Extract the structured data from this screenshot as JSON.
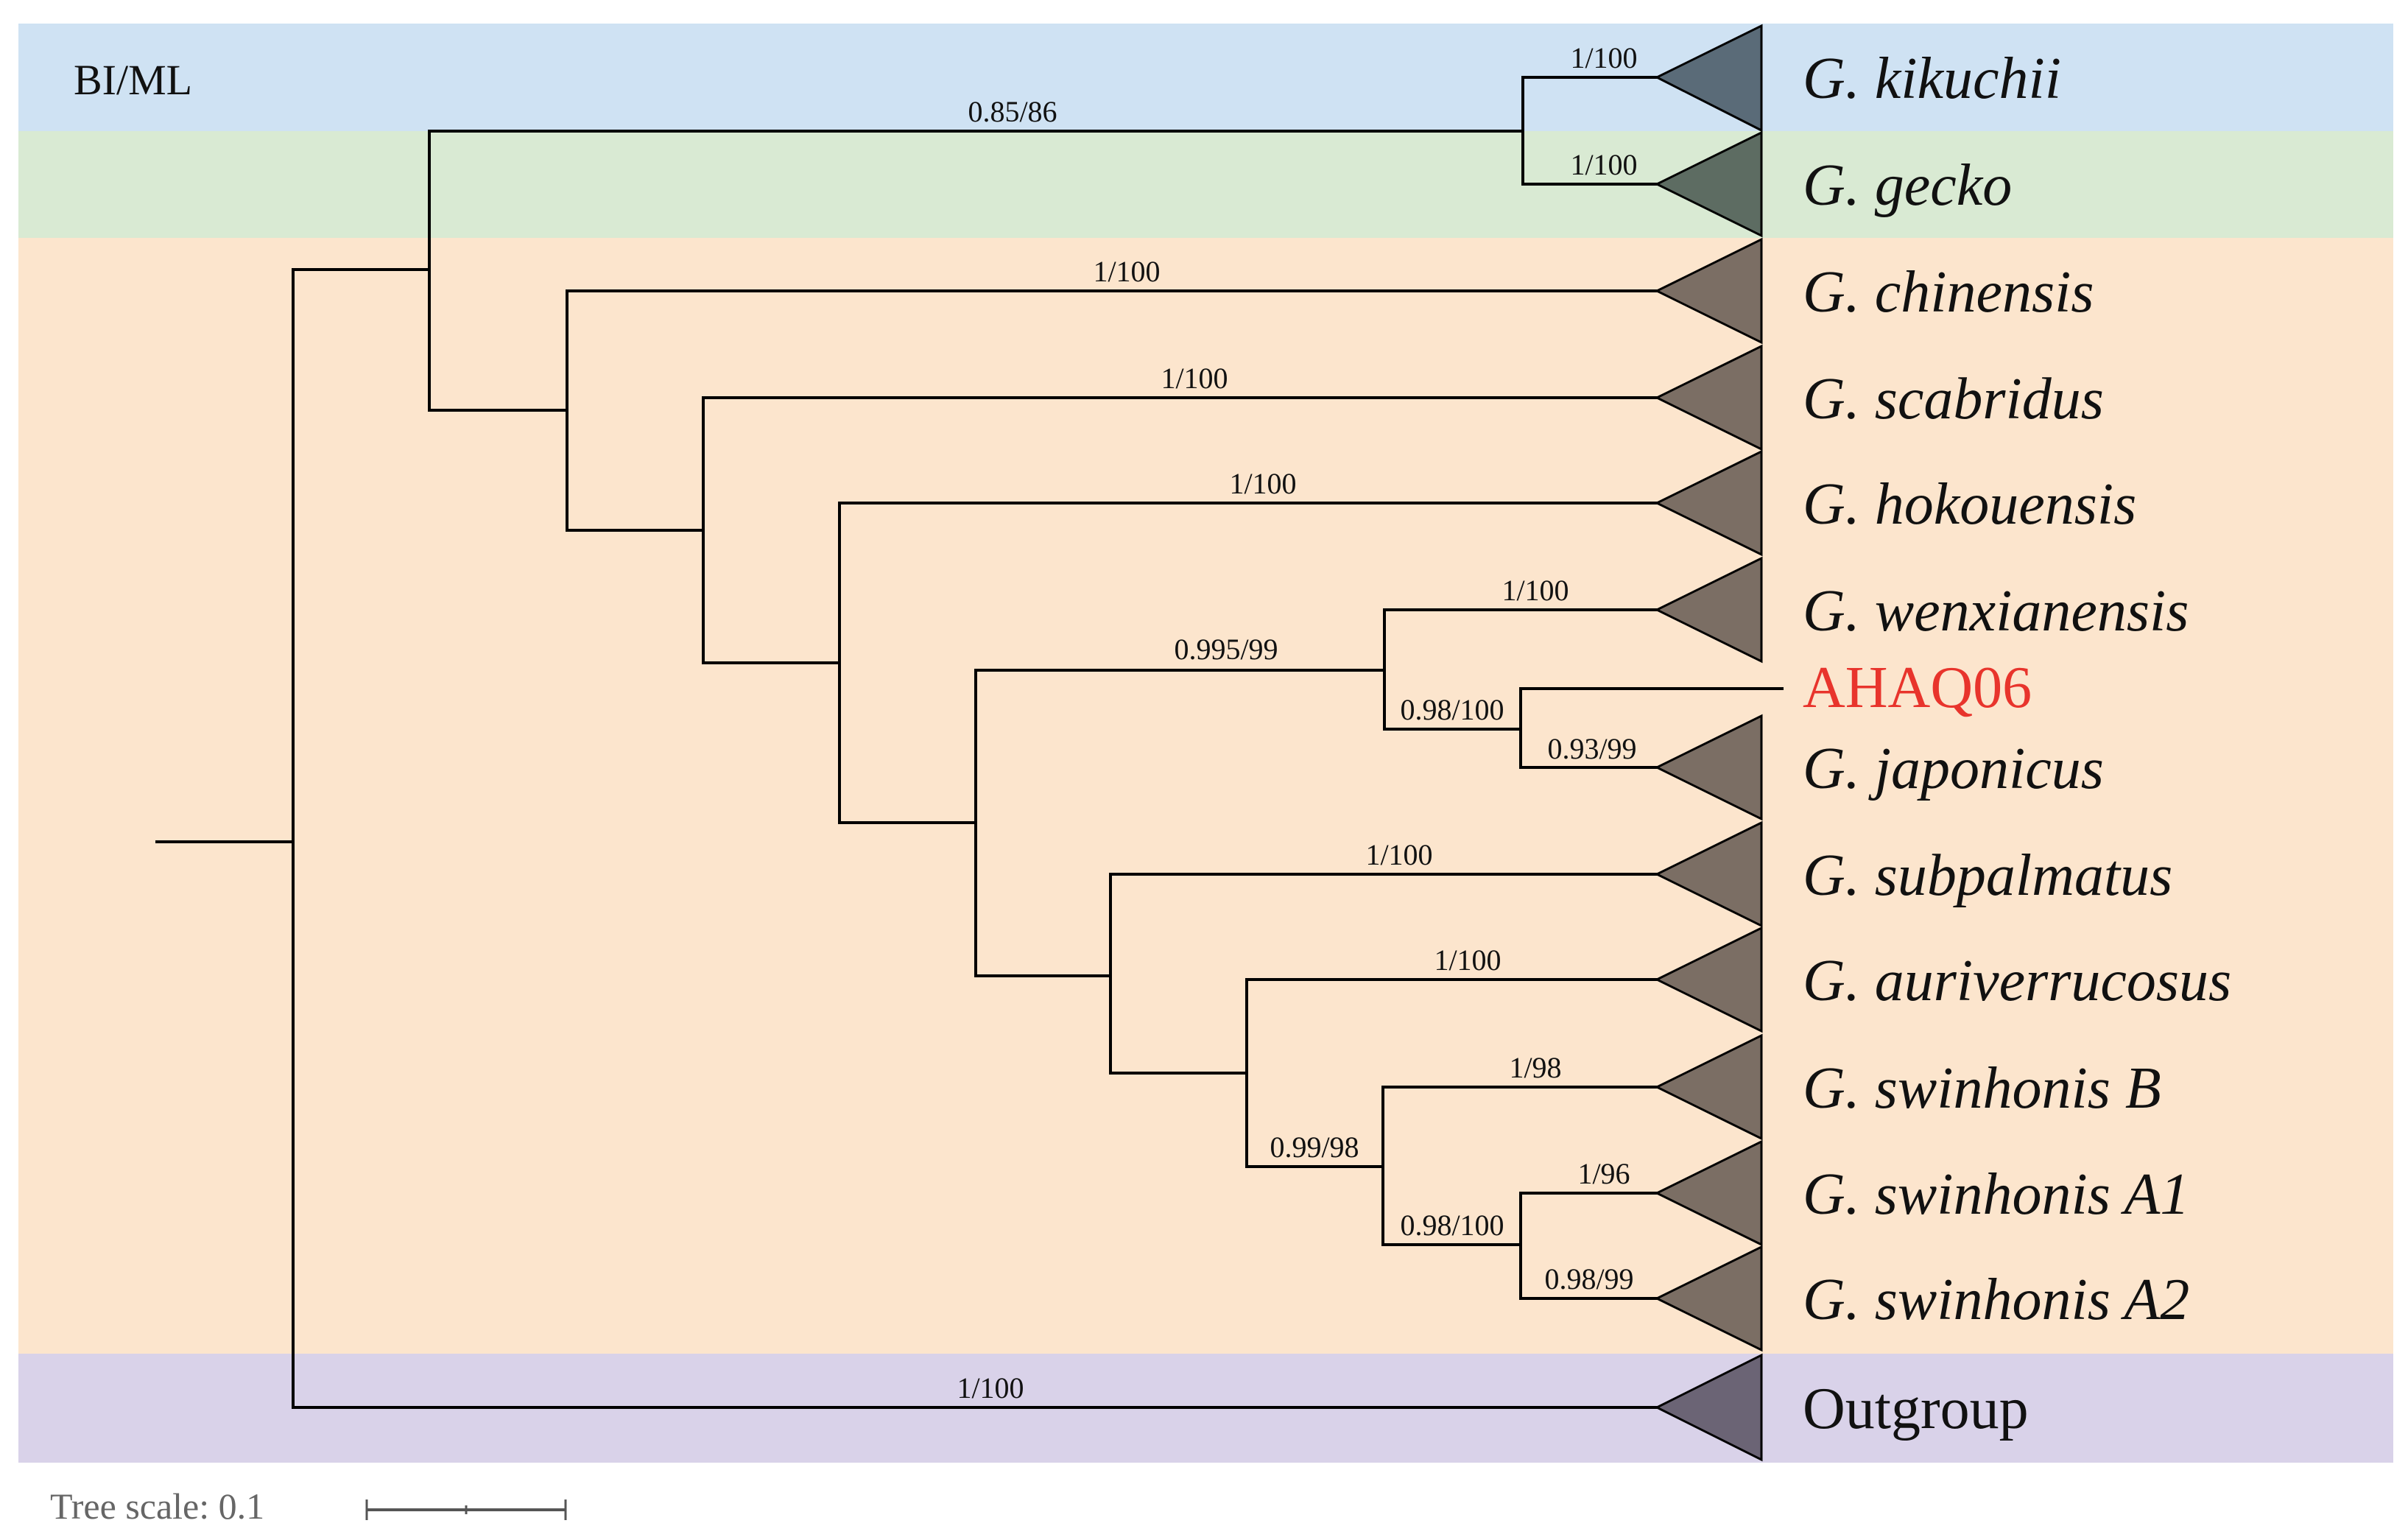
{
  "method_label": "BI/ML",
  "scale": {
    "label": "Tree scale: 0.1"
  },
  "colors": {
    "band_blue": "#cfe2f3",
    "band_green": "#d9ead3",
    "band_orange": "#fce5cd",
    "band_purple": "#d9d2e9",
    "clade_blue": "#5a6b78",
    "clade_green": "#5d6c62",
    "clade_brown": "#7b6e64",
    "clade_purple": "#6b6475",
    "highlight_red": "#e8342c"
  },
  "taxa": [
    {
      "id": "kikuchii",
      "label": "G. kikuchii",
      "style": "italic"
    },
    {
      "id": "gecko",
      "label": "G. gecko",
      "style": "italic"
    },
    {
      "id": "chinensis",
      "label": "G. chinensis",
      "style": "italic"
    },
    {
      "id": "scabridus",
      "label": "G. scabridus",
      "style": "italic"
    },
    {
      "id": "hokouensis",
      "label": "G. hokouensis",
      "style": "italic"
    },
    {
      "id": "wenxianensis",
      "label": "G. wenxianensis",
      "style": "italic"
    },
    {
      "id": "ahaq06",
      "label": "AHAQ06",
      "style": "sample"
    },
    {
      "id": "japonicus",
      "label": "G. japonicus",
      "style": "italic"
    },
    {
      "id": "subpalmatus",
      "label": "G. subpalmatus",
      "style": "italic"
    },
    {
      "id": "auriverrucosus",
      "label": "G. auriverrucosus",
      "style": "italic"
    },
    {
      "id": "swinhonisB",
      "label": "G. swinhonis B",
      "style": "italic"
    },
    {
      "id": "swinhonisA1",
      "label": "G. swinhonis A1",
      "style": "italic"
    },
    {
      "id": "swinhonisA2",
      "label": "G. swinhonis A2",
      "style": "italic"
    },
    {
      "id": "outgroup",
      "label": "Outgroup",
      "style": "plain"
    }
  ],
  "support_values": [
    {
      "id": "kikuchii",
      "value": "1/100"
    },
    {
      "id": "gecko",
      "value": "1/100"
    },
    {
      "id": "kikuchii_gecko",
      "value": "0.85/86"
    },
    {
      "id": "chinensis",
      "value": "1/100"
    },
    {
      "id": "scabridus",
      "value": "1/100"
    },
    {
      "id": "hokouensis",
      "value": "1/100"
    },
    {
      "id": "wenxianensis",
      "value": "1/100"
    },
    {
      "id": "wenx_clade",
      "value": "0.995/99"
    },
    {
      "id": "ahaq_jap",
      "value": "0.98/100"
    },
    {
      "id": "japonicus",
      "value": "0.93/99"
    },
    {
      "id": "subpalmatus",
      "value": "1/100"
    },
    {
      "id": "auriverrucosus",
      "value": "1/100"
    },
    {
      "id": "swinhonisB",
      "value": "1/98"
    },
    {
      "id": "swinB_clade",
      "value": "0.99/98"
    },
    {
      "id": "swinhonisA1",
      "value": "1/96"
    },
    {
      "id": "swinA_clade",
      "value": "0.98/100"
    },
    {
      "id": "swinhonisA2",
      "value": "0.98/99"
    },
    {
      "id": "outgroup",
      "value": "1/100"
    }
  ]
}
